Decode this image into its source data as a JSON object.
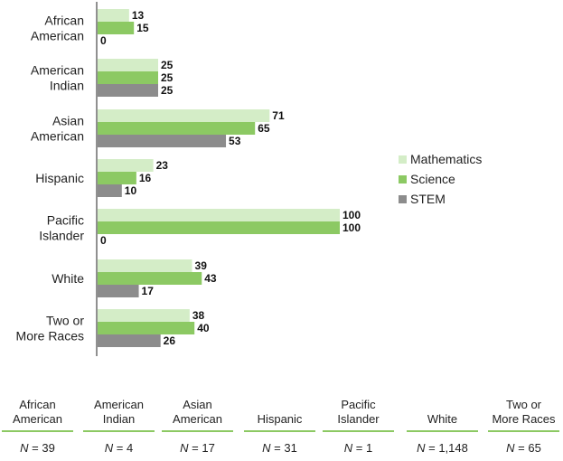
{
  "chart_data": {
    "type": "bar",
    "orientation": "horizontal",
    "categories": [
      [
        "African",
        "American"
      ],
      [
        "American",
        "Indian"
      ],
      [
        "Asian",
        "American"
      ],
      [
        "Hispanic"
      ],
      [
        "Pacific",
        "Islander"
      ],
      [
        "White"
      ],
      [
        "Two or",
        "More Races"
      ]
    ],
    "series": [
      {
        "name": "Mathematics",
        "color": "#d4edc7",
        "values": [
          13,
          25,
          71,
          23,
          100,
          39,
          38
        ]
      },
      {
        "name": "Science",
        "color": "#8cc963",
        "values": [
          15,
          25,
          65,
          16,
          100,
          43,
          40
        ]
      },
      {
        "name": "STEM",
        "color": "#8c8c8c",
        "values": [
          0,
          25,
          53,
          10,
          0,
          17,
          26
        ]
      }
    ],
    "xlim": [
      0,
      100
    ],
    "legend_position": "right",
    "grid": false
  },
  "n_table": {
    "columns": [
      {
        "label": [
          "African",
          "American"
        ],
        "n_symbol": "N",
        "n_value": "= 39"
      },
      {
        "label": [
          "American",
          "Indian"
        ],
        "n_symbol": "N",
        "n_value": "= 4"
      },
      {
        "label": [
          "Asian",
          "American"
        ],
        "n_symbol": "N",
        "n_value": "= 17"
      },
      {
        "label": [
          "Hispanic"
        ],
        "n_symbol": "N",
        "n_value": "= 31"
      },
      {
        "label": [
          "Pacific",
          "Islander"
        ],
        "n_symbol": "N",
        "n_value": "= 1"
      },
      {
        "label": [
          "White"
        ],
        "n_symbol": "N",
        "n_value": "= 1,148"
      },
      {
        "label": [
          "Two or",
          "More Races"
        ],
        "n_symbol": "N",
        "n_value": "= 65"
      }
    ]
  }
}
